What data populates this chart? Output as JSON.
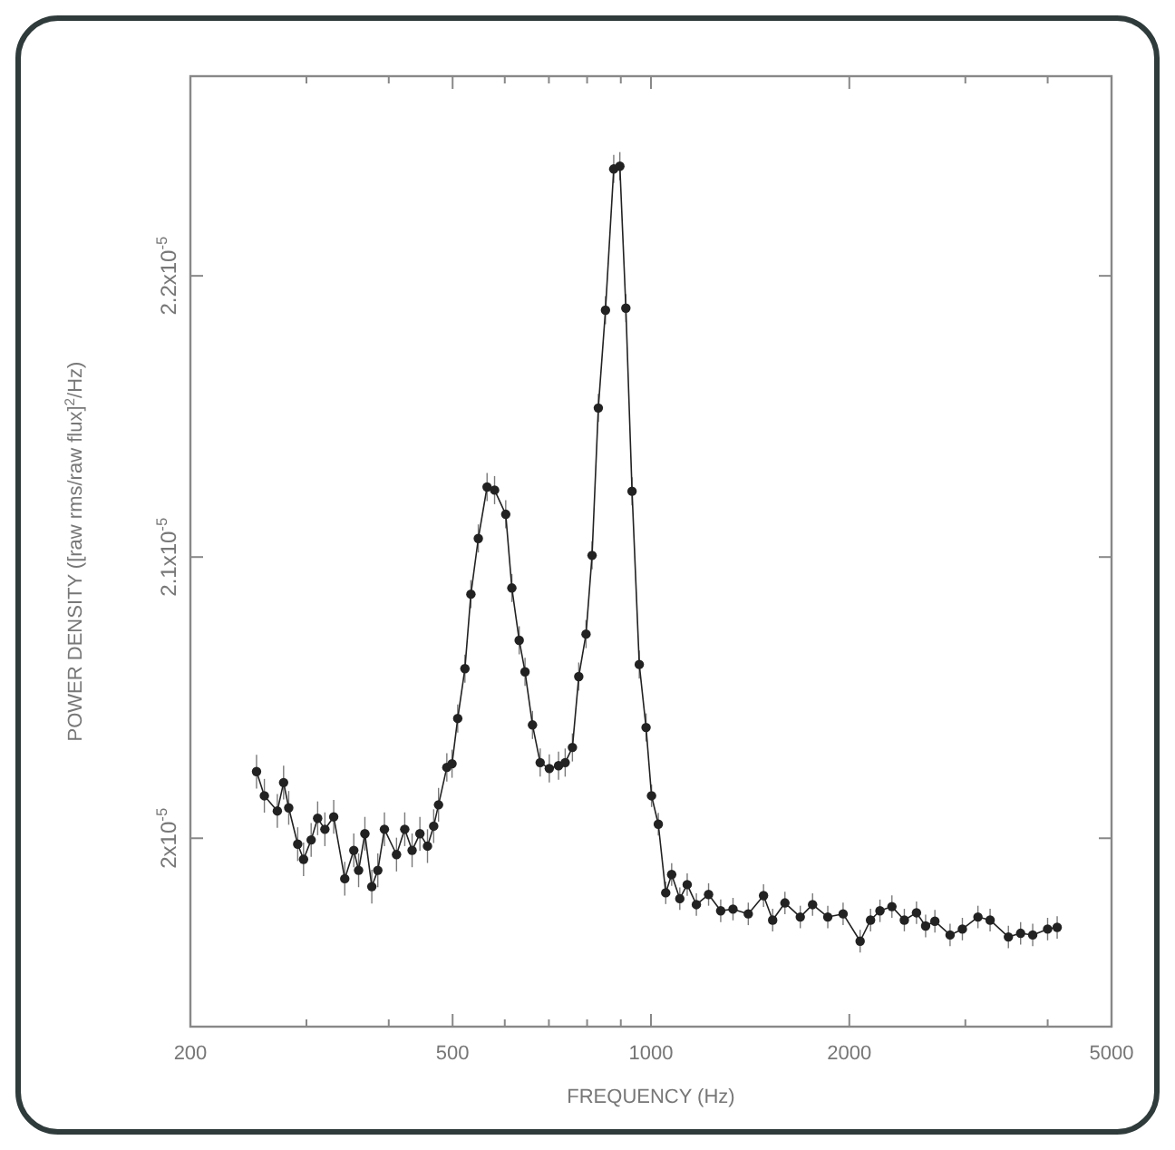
{
  "chart_data": {
    "type": "line",
    "xlabel": "FREQUENCY (Hz)",
    "ylabel": "POWER DENSITY ([raw rms/raw flux]$^{2}$/Hz)",
    "log": "x",
    "xlim": [
      200,
      5000
    ],
    "ylim": [
      1.933e-05,
      2.271e-05
    ],
    "xticks": [
      200,
      {
        "value": 300,
        "label": null
      },
      {
        "value": 400,
        "label": null
      },
      500,
      {
        "value": 600,
        "label": null
      },
      {
        "value": 700,
        "label": null
      },
      {
        "value": 800,
        "label": null
      },
      {
        "value": 900,
        "label": null
      },
      1000,
      2000,
      {
        "value": 3000,
        "label": null
      },
      {
        "value": 4000,
        "label": null
      },
      5000
    ],
    "yticks": [
      {
        "value": 2e-05,
        "label": "2x10$^{-5}$"
      },
      {
        "value": 2.1e-05,
        "label": "2.1x10$^{-5}$"
      },
      {
        "value": 2.2e-05,
        "label": "2.2x10$^{-5}$"
      }
    ],
    "grid": false,
    "marker": "circle",
    "line_style": "solid",
    "series": [
      {
        "color": "#222222",
        "x": [
          252,
          259,
          271,
          277,
          282,
          291,
          297,
          305,
          312,
          320,
          330,
          343,
          354,
          360,
          368,
          377,
          385,
          394,
          411,
          423,
          434,
          446,
          458,
          468,
          476,
          490,
          499,
          509,
          522,
          533,
          547,
          564,
          579,
          602,
          615,
          631,
          644,
          661,
          679,
          701,
          724,
          741,
          760,
          777,
          797,
          814,
          832,
          853,
          878,
          897,
          916,
          936,
          960,
          983,
          1002,
          1026,
          1053,
          1075,
          1106,
          1135,
          1172,
          1223,
          1276,
          1332,
          1405,
          1482,
          1530,
          1597,
          1685,
          1759,
          1855,
          1957,
          2077,
          2154,
          2226,
          2321,
          2424,
          2529,
          2611,
          2697,
          2844,
          2969,
          3135,
          3271,
          3487,
          3639,
          3796,
          3999,
          4135
        ],
        "values": [
          2.0237e-05,
          2.0151e-05,
          2.0097e-05,
          2.0198e-05,
          2.0108e-05,
          1.9979e-05,
          1.9925e-05,
          1.9994e-05,
          2.0071e-05,
          2.0032e-05,
          2.0076e-05,
          1.9856e-05,
          1.9957e-05,
          1.9886e-05,
          2.0016e-05,
          1.9828e-05,
          1.9886e-05,
          2.0032e-05,
          1.9942e-05,
          2.0032e-05,
          1.9957e-05,
          2.0016e-05,
          1.9972e-05,
          2.0043e-05,
          2.0119e-05,
          2.0252e-05,
          2.0265e-05,
          2.0426e-05,
          2.0603e-05,
          2.0868e-05,
          2.1066e-05,
          2.1249e-05,
          2.1238e-05,
          2.1152e-05,
          2.089e-05,
          2.0704e-05,
          2.0592e-05,
          2.0403e-05,
          2.0269e-05,
          2.0248e-05,
          2.0258e-05,
          2.0269e-05,
          2.0323e-05,
          2.0575e-05,
          2.0726e-05,
          2.1006e-05,
          2.153e-05,
          2.1878e-05,
          2.238e-05,
          2.239e-05,
          2.1885e-05,
          2.1234e-05,
          2.0618e-05,
          2.0394e-05,
          2.0151e-05,
          2.005e-05,
          1.9806e-05,
          1.9871e-05,
          1.9785e-05,
          1.9835e-05,
          1.9764e-05,
          1.98e-05,
          1.9742e-05,
          1.9748e-05,
          1.9731e-05,
          1.9796e-05,
          1.9709e-05,
          1.977e-05,
          1.972e-05,
          1.9764e-05,
          1.972e-05,
          1.9731e-05,
          1.9634e-05,
          1.9709e-05,
          1.9742e-05,
          1.9757e-05,
          1.9709e-05,
          1.9735e-05,
          1.9688e-05,
          1.9705e-05,
          1.9656e-05,
          1.9677e-05,
          1.972e-05,
          1.9709e-05,
          1.9649e-05,
          1.9662e-05,
          1.9656e-05,
          1.9677e-05,
          1.9683e-05
        ],
        "errors": [
          6e-08,
          6e-08,
          6e-08,
          6e-08,
          6e-08,
          6e-08,
          6e-08,
          6e-08,
          6e-08,
          6e-08,
          6e-08,
          6e-08,
          6e-08,
          6e-08,
          6e-08,
          6e-08,
          6e-08,
          6e-08,
          6e-08,
          6e-08,
          6e-08,
          6e-08,
          6e-08,
          6e-08,
          6e-08,
          5e-08,
          5e-08,
          5e-08,
          5e-08,
          5e-08,
          5e-08,
          5e-08,
          5e-08,
          5e-08,
          5e-08,
          5e-08,
          5e-08,
          5e-08,
          5e-08,
          5e-08,
          5e-08,
          5e-08,
          5e-08,
          5e-08,
          5e-08,
          5e-08,
          5e-08,
          5e-08,
          5e-08,
          5e-08,
          5e-08,
          5e-08,
          5e-08,
          5e-08,
          4e-08,
          4e-08,
          4e-08,
          4e-08,
          4e-08,
          4e-08,
          4e-08,
          4e-08,
          4e-08,
          4e-08,
          4e-08,
          4e-08,
          4e-08,
          4e-08,
          4e-08,
          4e-08,
          4e-08,
          4e-08,
          4e-08,
          4e-08,
          4e-08,
          4e-08,
          4e-08,
          4e-08,
          4e-08,
          4e-08,
          4e-08,
          4e-08,
          4e-08,
          4e-08,
          4e-08,
          4e-08,
          4e-08,
          4e-08,
          4e-08
        ]
      }
    ]
  }
}
